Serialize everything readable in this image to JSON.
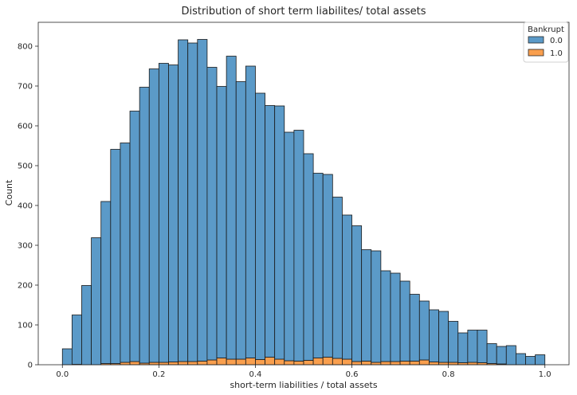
{
  "chart_data": {
    "type": "bar",
    "title": "Distribution of short term liabilites/ total assets",
    "xlabel": "short-term liabilities / total assets",
    "ylabel": "Count",
    "xlim": [
      -0.05,
      1.05
    ],
    "ylim": [
      0,
      860
    ],
    "xticks": [
      0.0,
      0.2,
      0.4,
      0.6,
      0.8,
      1.0
    ],
    "xtick_labels": [
      "0.0",
      "0.2",
      "0.4",
      "0.6",
      "0.8",
      "1.0"
    ],
    "yticks": [
      0,
      100,
      200,
      300,
      400,
      500,
      600,
      700,
      800
    ],
    "ytick_labels": [
      "0",
      "100",
      "200",
      "300",
      "400",
      "500",
      "600",
      "700",
      "800"
    ],
    "stacked": true,
    "bin_width": 0.02,
    "bin_starts": [
      0.0,
      0.02,
      0.04,
      0.06,
      0.08,
      0.1,
      0.12,
      0.14,
      0.16,
      0.18,
      0.2,
      0.22,
      0.24,
      0.26,
      0.28,
      0.3,
      0.32,
      0.34,
      0.36,
      0.38,
      0.4,
      0.42,
      0.44,
      0.46,
      0.48,
      0.5,
      0.52,
      0.54,
      0.56,
      0.58,
      0.6,
      0.62,
      0.64,
      0.66,
      0.68,
      0.7,
      0.72,
      0.74,
      0.76,
      0.78,
      0.8,
      0.82,
      0.84,
      0.86,
      0.88,
      0.9,
      0.92,
      0.94,
      0.96,
      0.98
    ],
    "series": [
      {
        "name": "0.0",
        "color": "#5b9ac8",
        "values": [
          40,
          124,
          199,
          319,
          407,
          538,
          551,
          629,
          693,
          737,
          751,
          746,
          808,
          800,
          808,
          735,
          682,
          761,
          697,
          733,
          669,
          632,
          636,
          574,
          580,
          519,
          464,
          459,
          405,
          362,
          341,
          280,
          280,
          228,
          222,
          201,
          168,
          148,
          131,
          128,
          103,
          75,
          81,
          82,
          50,
          44,
          48,
          28,
          21,
          25
        ]
      },
      {
        "name": "1.0",
        "color": "#f99f4e",
        "values": [
          0,
          1,
          0,
          0,
          3,
          3,
          6,
          8,
          4,
          6,
          6,
          7,
          8,
          8,
          9,
          12,
          17,
          14,
          14,
          17,
          13,
          19,
          14,
          10,
          9,
          11,
          17,
          19,
          16,
          14,
          8,
          9,
          6,
          8,
          8,
          9,
          9,
          12,
          7,
          6,
          6,
          5,
          6,
          5,
          3,
          2,
          0,
          0,
          0,
          0
        ]
      }
    ],
    "legend": {
      "title": "Bankrupt",
      "position": "top-right",
      "entries": [
        "0.0",
        "1.0"
      ]
    }
  }
}
